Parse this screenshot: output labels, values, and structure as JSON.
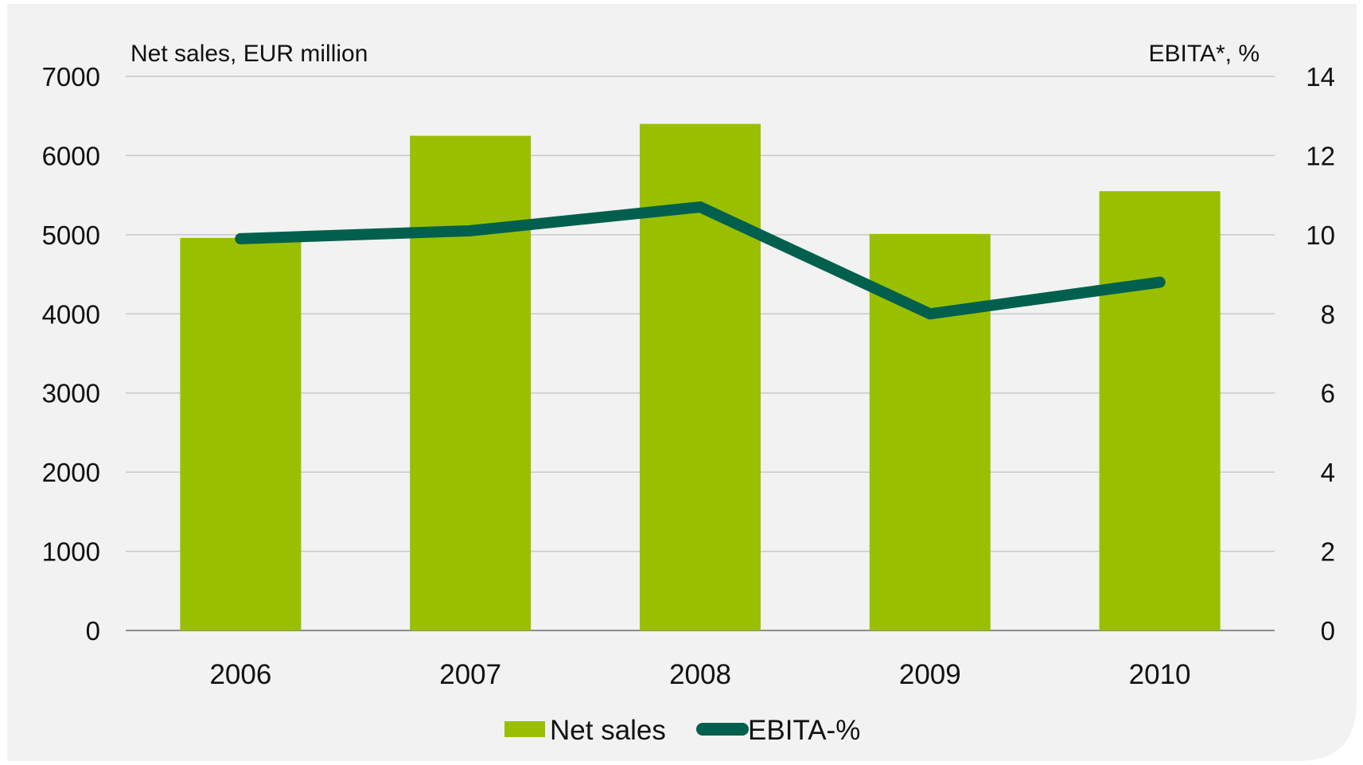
{
  "chart_data": {
    "type": "bar",
    "categories": [
      "2006",
      "2007",
      "2008",
      "2009",
      "2010"
    ],
    "series": [
      {
        "name": "Net sales",
        "type": "bar",
        "axis": "left",
        "values": [
          4960,
          6250,
          6400,
          5010,
          5550
        ]
      },
      {
        "name": "EBITA-%",
        "type": "line",
        "axis": "right",
        "values": [
          9.9,
          10.1,
          10.7,
          8.0,
          8.8
        ]
      }
    ],
    "ylabel_left": "Net sales, EUR million",
    "ylabel_right": "EBITA*, %",
    "ylim_left": [
      0,
      7000
    ],
    "ylim_right": [
      0,
      14
    ],
    "yticks_left": [
      "0",
      "1000",
      "2000",
      "3000",
      "4000",
      "5000",
      "6000",
      "7000"
    ],
    "yticks_right": [
      "0",
      "2",
      "4",
      "6",
      "8",
      "10",
      "12",
      "14"
    ],
    "grid": true,
    "legend_position": "bottom",
    "colors": {
      "bar": "#99bf00",
      "line": "#00604d",
      "background": "#f2f2f2",
      "grid": "#c8c8c8"
    }
  }
}
